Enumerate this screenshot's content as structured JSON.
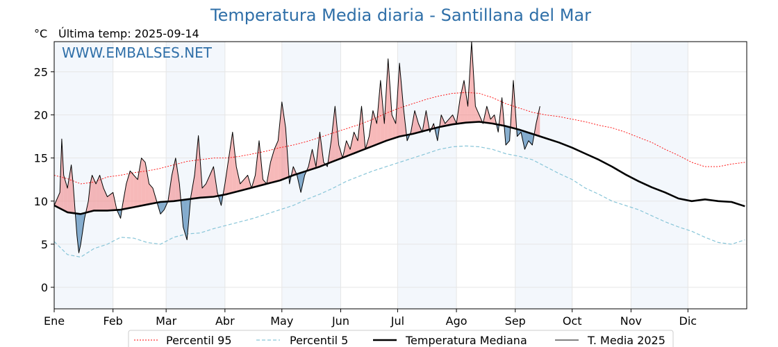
{
  "chart_data": {
    "type": "line",
    "title": "Temperatura Media diaria - Santillana del Mar",
    "unit": "°C",
    "last_update": "Última temp: 2025-09-14",
    "watermark": "WWW.EMBALSES.NET",
    "ylim": [
      -2.5,
      28.5
    ],
    "yticks": [
      0,
      5,
      10,
      15,
      20,
      25
    ],
    "xlim": [
      0,
      365
    ],
    "months": [
      "Ene",
      "Feb",
      "Mar",
      "Abr",
      "May",
      "Jun",
      "Jul",
      "Ago",
      "Sep",
      "Oct",
      "Nov",
      "Dic"
    ],
    "month_starts": [
      0,
      31,
      59,
      90,
      120,
      151,
      181,
      212,
      243,
      273,
      304,
      334
    ],
    "grid": true,
    "legend_position": "bottom-center",
    "colors": {
      "p95": "#ff0000",
      "p5": "#87c5d8",
      "median": "#000000",
      "current": "#000000",
      "above_fill": "#f08080",
      "below_fill": "#4682b4",
      "band": "#dce9f5"
    },
    "series": [
      {
        "name": "Percentil 95",
        "key": "p95",
        "x": [
          0,
          7,
          14,
          21,
          28,
          35,
          42,
          49,
          56,
          63,
          70,
          77,
          84,
          91,
          98,
          105,
          112,
          119,
          126,
          133,
          140,
          147,
          154,
          161,
          168,
          175,
          182,
          189,
          196,
          203,
          210,
          217,
          224,
          231,
          238,
          245,
          252,
          259,
          266,
          273,
          280,
          287,
          294,
          301,
          308,
          315,
          322,
          329,
          336,
          343,
          350,
          357,
          364
        ],
        "values": [
          13.0,
          12.6,
          12.0,
          12.2,
          12.8,
          13.0,
          13.3,
          13.5,
          13.8,
          14.2,
          14.6,
          14.8,
          15.0,
          15.0,
          15.2,
          15.5,
          15.8,
          16.2,
          16.5,
          16.9,
          17.4,
          17.9,
          18.4,
          18.9,
          19.5,
          20.2,
          20.8,
          21.3,
          21.8,
          22.2,
          22.5,
          22.6,
          22.5,
          22.0,
          21.3,
          20.8,
          20.3,
          20.0,
          19.8,
          19.5,
          19.2,
          18.8,
          18.5,
          18.0,
          17.4,
          16.8,
          16.0,
          15.3,
          14.5,
          14.0,
          14.0,
          14.3,
          14.5
        ]
      },
      {
        "name": "Percentil 5",
        "key": "p5",
        "x": [
          0,
          7,
          14,
          21,
          28,
          35,
          42,
          49,
          56,
          63,
          70,
          77,
          84,
          91,
          98,
          105,
          112,
          119,
          126,
          133,
          140,
          147,
          154,
          161,
          168,
          175,
          182,
          189,
          196,
          203,
          210,
          217,
          224,
          231,
          238,
          245,
          252,
          259,
          266,
          273,
          280,
          287,
          294,
          301,
          308,
          315,
          322,
          329,
          336,
          343,
          350,
          357,
          364
        ],
        "values": [
          5.3,
          3.8,
          3.5,
          4.5,
          5.0,
          5.8,
          5.7,
          5.2,
          5.0,
          5.8,
          6.2,
          6.3,
          6.8,
          7.2,
          7.6,
          8.0,
          8.5,
          9.0,
          9.5,
          10.2,
          10.8,
          11.5,
          12.3,
          12.9,
          13.5,
          14.0,
          14.5,
          15.0,
          15.5,
          16.0,
          16.3,
          16.4,
          16.3,
          16.0,
          15.5,
          15.2,
          14.8,
          14.0,
          13.2,
          12.5,
          11.5,
          10.8,
          10.0,
          9.5,
          9.0,
          8.3,
          7.6,
          7.0,
          6.5,
          5.8,
          5.2,
          5.0,
          5.5
        ]
      },
      {
        "name": "Temperatura Mediana",
        "key": "median",
        "x": [
          0,
          7,
          14,
          21,
          28,
          35,
          42,
          49,
          56,
          63,
          70,
          77,
          84,
          91,
          98,
          105,
          112,
          119,
          126,
          133,
          140,
          147,
          154,
          161,
          168,
          175,
          182,
          189,
          196,
          203,
          210,
          217,
          224,
          231,
          238,
          245,
          252,
          259,
          266,
          273,
          280,
          287,
          294,
          301,
          308,
          315,
          322,
          329,
          336,
          343,
          350,
          357,
          364
        ],
        "values": [
          9.5,
          8.7,
          8.5,
          8.9,
          8.9,
          9.0,
          9.3,
          9.6,
          9.9,
          10.0,
          10.2,
          10.4,
          10.5,
          10.8,
          11.2,
          11.6,
          12.0,
          12.4,
          13.0,
          13.5,
          14.0,
          14.6,
          15.2,
          15.8,
          16.4,
          17.0,
          17.5,
          17.8,
          18.2,
          18.6,
          18.9,
          19.1,
          19.2,
          19.0,
          18.7,
          18.3,
          17.8,
          17.3,
          16.8,
          16.2,
          15.5,
          14.8,
          14.0,
          13.1,
          12.3,
          11.6,
          11.0,
          10.3,
          10.0,
          10.2,
          10.0,
          9.9,
          9.4
        ]
      },
      {
        "name": "T. Media 2025",
        "key": "current",
        "x": [
          0,
          3,
          4,
          5,
          7,
          9,
          10,
          11,
          12,
          13,
          14,
          16,
          18,
          19,
          20,
          22,
          24,
          26,
          28,
          31,
          33,
          35,
          36,
          38,
          40,
          42,
          44,
          46,
          48,
          50,
          52,
          54,
          56,
          58,
          60,
          62,
          64,
          66,
          68,
          70,
          72,
          74,
          76,
          78,
          80,
          82,
          84,
          86,
          88,
          90,
          92,
          94,
          96,
          98,
          100,
          102,
          104,
          106,
          108,
          110,
          112,
          114,
          116,
          118,
          120,
          122,
          124,
          126,
          128,
          130,
          132,
          134,
          136,
          138,
          140,
          142,
          144,
          146,
          148,
          150,
          152,
          154,
          156,
          158,
          160,
          162,
          164,
          166,
          168,
          170,
          172,
          174,
          176,
          178,
          180,
          182,
          184,
          186,
          188,
          190,
          192,
          194,
          196,
          198,
          200,
          202,
          204,
          206,
          208,
          210,
          212,
          214,
          216,
          218,
          220,
          222,
          224,
          226,
          228,
          230,
          232,
          234,
          236,
          238,
          240,
          242,
          244,
          246,
          248,
          250,
          252,
          254,
          256
        ],
        "values": [
          9.5,
          11.0,
          17.2,
          13.0,
          11.5,
          14.2,
          12.0,
          9.0,
          6.0,
          4.0,
          5.0,
          8.0,
          10.0,
          12.0,
          13.0,
          12.0,
          13.0,
          11.5,
          10.5,
          11.0,
          9.0,
          8.0,
          9.5,
          12.0,
          13.5,
          13.0,
          12.5,
          15.0,
          14.5,
          12.0,
          11.5,
          10.0,
          8.5,
          9.0,
          10.0,
          13.0,
          15.0,
          12.0,
          7.0,
          5.5,
          10.5,
          13.0,
          17.6,
          11.5,
          12.0,
          13.0,
          14.0,
          11.0,
          9.5,
          12.0,
          15.0,
          18.0,
          14.0,
          12.0,
          12.5,
          13.0,
          11.5,
          13.0,
          17.0,
          12.5,
          12.0,
          14.5,
          16.0,
          17.0,
          21.5,
          18.5,
          12.0,
          14.0,
          13.0,
          11.0,
          13.0,
          14.0,
          16.0,
          14.0,
          18.0,
          14.5,
          14.0,
          17.0,
          21.0,
          16.5,
          15.0,
          17.0,
          16.0,
          18.0,
          17.0,
          21.0,
          16.0,
          17.5,
          20.5,
          19.0,
          24.0,
          19.0,
          26.5,
          20.0,
          19.0,
          26.0,
          21.0,
          17.0,
          18.0,
          20.5,
          19.0,
          18.0,
          20.5,
          18.0,
          19.0,
          17.0,
          20.0,
          19.0,
          19.5,
          20.0,
          19.0,
          22.0,
          24.0,
          21.0,
          28.5,
          21.0,
          20.0,
          19.0,
          21.0,
          19.5,
          20.0,
          18.0,
          22.0,
          16.5,
          17.0,
          24.0,
          17.5,
          18.0,
          16.0,
          17.0,
          16.5,
          19.0,
          21.0
        ]
      }
    ]
  }
}
